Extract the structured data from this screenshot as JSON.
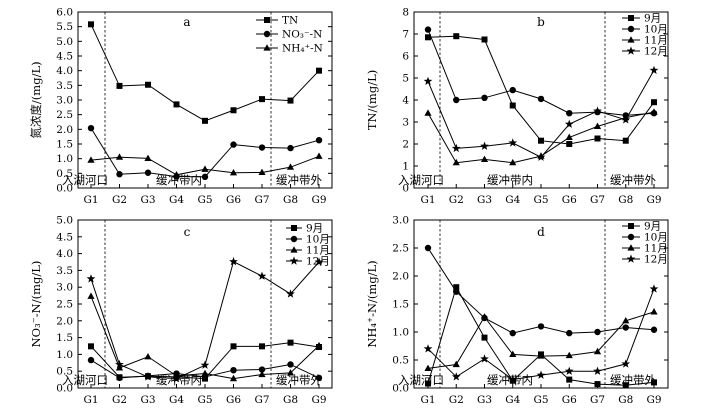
{
  "chart_data": [
    {
      "type": "line",
      "panel_label": "a",
      "ylabel": "氮浓度/(mg/L)",
      "categories": [
        "G1",
        "G2",
        "G3",
        "G4",
        "G5",
        "G6",
        "G7",
        "G8",
        "G9"
      ],
      "ylim": [
        0,
        6
      ],
      "yticks": [
        "0.0",
        "0.5",
        "1.0",
        "1.5",
        "2.0",
        "2.5",
        "3.0",
        "3.5",
        "4.0",
        "4.5",
        "5.0",
        "5.5",
        "6.0"
      ],
      "region_labels": [
        "入湖河口",
        "缓冲带内",
        "缓冲带外"
      ],
      "legend_position": "top-right",
      "series": [
        {
          "name": "TN",
          "marker": "square",
          "values": [
            5.58,
            3.48,
            3.52,
            2.85,
            2.29,
            2.65,
            3.03,
            2.98,
            4.0
          ]
        },
        {
          "name": "NO₃⁻-N",
          "marker": "circle",
          "values": [
            2.04,
            0.47,
            0.52,
            0.39,
            0.38,
            1.48,
            1.38,
            1.36,
            1.63
          ]
        },
        {
          "name": "NH₄⁺-N",
          "marker": "triangle",
          "values": [
            0.95,
            1.05,
            1.01,
            0.45,
            0.64,
            0.52,
            0.53,
            0.71,
            1.08
          ]
        }
      ]
    },
    {
      "type": "line",
      "panel_label": "b",
      "ylabel": "TN/(mg/L)",
      "categories": [
        "G1",
        "G2",
        "G3",
        "G4",
        "G5",
        "G6",
        "G7",
        "G8",
        "G9"
      ],
      "ylim": [
        0,
        8
      ],
      "yticks": [
        "0",
        "1",
        "2",
        "3",
        "4",
        "5",
        "6",
        "7",
        "8"
      ],
      "region_labels": [
        "入湖河口",
        "缓冲带内",
        "缓冲带外"
      ],
      "legend_position": "top-right",
      "series": [
        {
          "name": "9月",
          "marker": "square",
          "values": [
            6.85,
            6.9,
            6.75,
            3.75,
            2.15,
            2.0,
            2.25,
            2.15,
            3.9
          ]
        },
        {
          "name": "10月",
          "marker": "circle",
          "values": [
            7.2,
            4.0,
            4.1,
            4.45,
            4.05,
            3.4,
            3.45,
            3.3,
            3.4
          ]
        },
        {
          "name": "11月",
          "marker": "triangle",
          "values": [
            3.4,
            1.15,
            1.3,
            1.15,
            1.45,
            2.3,
            2.8,
            3.2,
            3.45
          ]
        },
        {
          "name": "12月",
          "marker": "star",
          "values": [
            4.85,
            1.8,
            1.9,
            2.05,
            1.4,
            2.9,
            3.5,
            3.1,
            5.35
          ]
        }
      ]
    },
    {
      "type": "line",
      "panel_label": "c",
      "ylabel": "NO₃⁻-N/(mg/L)",
      "categories": [
        "G1",
        "G2",
        "G3",
        "G4",
        "G5",
        "G6",
        "G7",
        "G8",
        "G9"
      ],
      "ylim": [
        0,
        5
      ],
      "yticks": [
        "0.0",
        "0.5",
        "1.0",
        "1.5",
        "2.0",
        "2.5",
        "3.0",
        "3.5",
        "4.0",
        "4.5",
        "5.0"
      ],
      "region_labels": [
        "入湖河口",
        "缓冲带内",
        "缓冲带外"
      ],
      "legend_position": "top-right",
      "series": [
        {
          "name": "9月",
          "marker": "square",
          "values": [
            1.24,
            0.32,
            0.35,
            0.33,
            0.28,
            1.24,
            1.24,
            1.35,
            1.22
          ]
        },
        {
          "name": "10月",
          "marker": "circle",
          "values": [
            0.83,
            0.3,
            0.36,
            0.43,
            0.33,
            0.53,
            0.55,
            0.7,
            0.3
          ]
        },
        {
          "name": "11月",
          "marker": "triangle",
          "values": [
            2.73,
            0.6,
            0.93,
            0.36,
            0.43,
            0.28,
            0.4,
            0.45,
            1.26
          ]
        },
        {
          "name": "12月",
          "marker": "star",
          "values": [
            3.25,
            0.7,
            0.33,
            0.28,
            0.68,
            3.76,
            3.33,
            2.8,
            3.75
          ]
        }
      ]
    },
    {
      "type": "line",
      "panel_label": "d",
      "ylabel": "NH₄⁺-N/(mg/L)",
      "categories": [
        "G1",
        "G2",
        "G3",
        "G4",
        "G5",
        "G6",
        "G7",
        "G8",
        "G9"
      ],
      "ylim": [
        0,
        3
      ],
      "yticks": [
        "0.0",
        "0.5",
        "1.0",
        "1.5",
        "2.0",
        "2.5",
        "3.0"
      ],
      "region_labels": [
        "入湖河口",
        "缓冲带内",
        "缓冲带外"
      ],
      "legend_position": "top-right",
      "series": [
        {
          "name": "9月",
          "marker": "square",
          "values": [
            0.08,
            1.8,
            0.9,
            0.13,
            0.6,
            0.15,
            0.07,
            0.05,
            0.1
          ]
        },
        {
          "name": "10月",
          "marker": "circle",
          "values": [
            2.5,
            1.72,
            1.25,
            0.98,
            1.1,
            0.98,
            1.0,
            1.08,
            1.04
          ]
        },
        {
          "name": "11月",
          "marker": "triangle",
          "values": [
            0.35,
            0.42,
            1.27,
            0.6,
            0.57,
            0.58,
            0.65,
            1.2,
            1.36
          ]
        },
        {
          "name": "12月",
          "marker": "star",
          "values": [
            0.7,
            0.2,
            0.52,
            0.15,
            0.23,
            0.3,
            0.3,
            0.43,
            1.77
          ]
        }
      ]
    }
  ]
}
